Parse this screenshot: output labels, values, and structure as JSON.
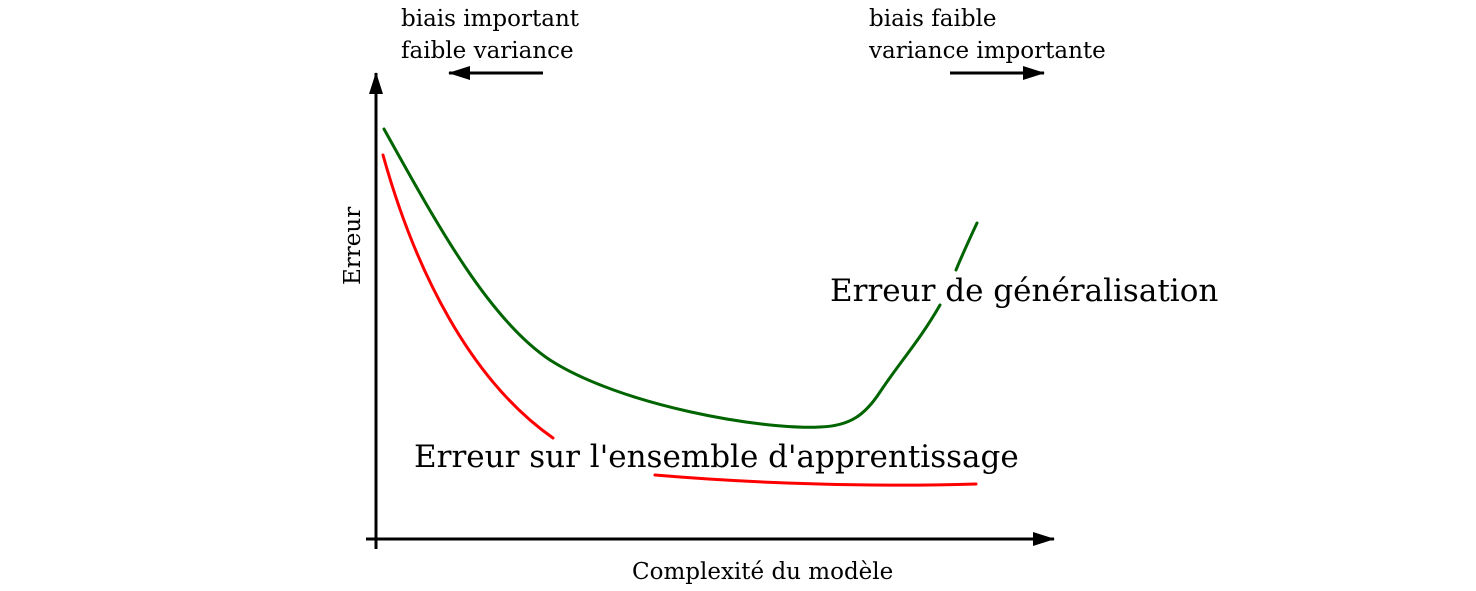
{
  "annotations": {
    "left_line1": "biais important",
    "left_line2": "faible variance",
    "right_line1": "biais faible",
    "right_line2": "variance importante"
  },
  "axes": {
    "x_label": "Complexité du modèle",
    "y_label": "Erreur"
  },
  "curves": {
    "generalization": {
      "label": "Erreur de généralisation",
      "color": "#006400"
    },
    "training": {
      "label": "Erreur sur l'ensemble d'apprentissage",
      "color": "#ff0000"
    }
  }
}
